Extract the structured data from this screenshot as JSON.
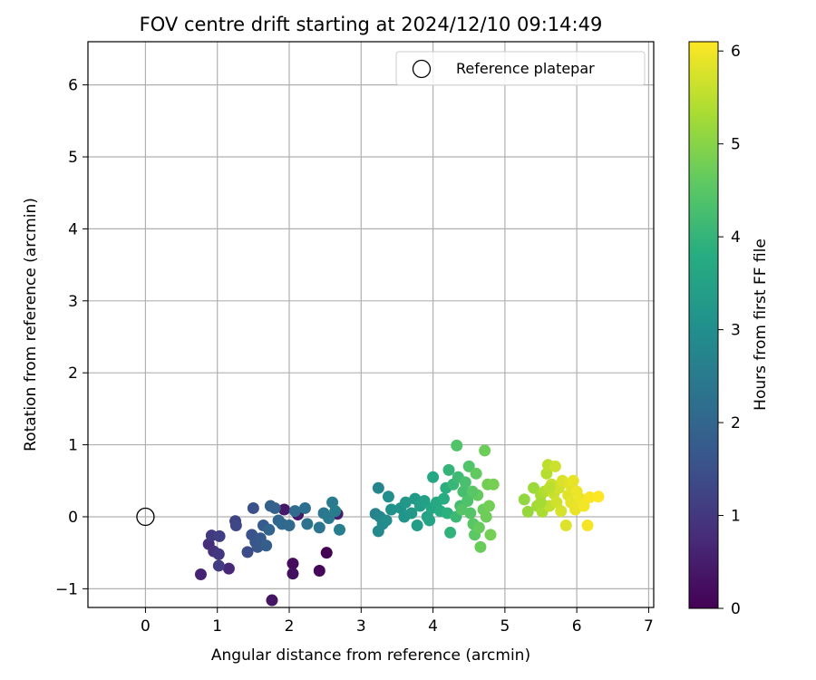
{
  "chart_data": {
    "type": "scatter",
    "title": "FOV centre drift starting at 2024/12/10 09:14:49",
    "xlabel": "Angular distance from reference (arcmin)",
    "ylabel": "Rotation from reference (arcmin)",
    "xlim": [
      -0.8,
      7.07
    ],
    "ylim": [
      -1.26,
      6.6
    ],
    "xticks": [
      0,
      1,
      2,
      3,
      4,
      5,
      6,
      7
    ],
    "xtick_labels": [
      "0",
      "1",
      "2",
      "3",
      "4",
      "5",
      "6",
      "7"
    ],
    "yticks": [
      -1,
      0,
      1,
      2,
      3,
      4,
      5,
      6
    ],
    "ytick_labels": [
      "−1",
      "0",
      "1",
      "2",
      "3",
      "4",
      "5",
      "6"
    ],
    "grid": true,
    "legend": {
      "position": "top-right",
      "entries": [
        {
          "label": "Reference platepar",
          "marker": "open-circle"
        }
      ]
    },
    "reference_point": {
      "x": 0,
      "y": 0
    },
    "colorbar": {
      "label": "Hours from first FF file",
      "colormap": "viridis",
      "range": [
        0,
        6.1
      ],
      "ticks": [
        0,
        1,
        2,
        3,
        4,
        5,
        6
      ],
      "tick_labels": [
        "0",
        "1",
        "2",
        "3",
        "4",
        "5",
        "6"
      ]
    },
    "series": [
      {
        "fields": [
          "x",
          "y",
          "hours"
        ],
        "points": [
          [
            2.52,
            -0.5,
            0.0
          ],
          [
            2.42,
            -0.75,
            0.1
          ],
          [
            2.05,
            -0.65,
            0.2
          ],
          [
            2.05,
            -0.79,
            0.25
          ],
          [
            1.76,
            -1.16,
            0.35
          ],
          [
            1.93,
            0.1,
            0.4
          ],
          [
            2.12,
            0.03,
            0.45
          ],
          [
            2.67,
            0.04,
            0.5
          ],
          [
            0.77,
            -0.8,
            0.6
          ],
          [
            1.16,
            -0.72,
            0.7
          ],
          [
            0.88,
            -0.38,
            0.8
          ],
          [
            0.95,
            -0.48,
            0.9
          ],
          [
            1.02,
            -0.52,
            1.0
          ],
          [
            0.92,
            -0.26,
            1.05
          ],
          [
            1.02,
            -0.68,
            1.1
          ],
          [
            1.03,
            -0.27,
            1.15
          ],
          [
            1.25,
            -0.06,
            1.25
          ],
          [
            1.26,
            -0.12,
            1.3
          ],
          [
            1.42,
            -0.49,
            1.4
          ],
          [
            1.5,
            0.12,
            1.5
          ],
          [
            1.48,
            -0.25,
            1.55
          ],
          [
            1.53,
            -0.35,
            1.6
          ],
          [
            1.56,
            -0.42,
            1.65
          ],
          [
            1.6,
            -0.3,
            1.7
          ],
          [
            1.64,
            -0.12,
            1.75
          ],
          [
            1.68,
            -0.4,
            1.8
          ],
          [
            1.74,
            0.15,
            1.85
          ],
          [
            1.8,
            0.12,
            1.9
          ],
          [
            1.72,
            -0.18,
            1.95
          ],
          [
            1.85,
            -0.05,
            2.0
          ],
          [
            1.9,
            -0.1,
            2.05
          ],
          [
            2.0,
            -0.12,
            2.1
          ],
          [
            2.08,
            0.08,
            2.15
          ],
          [
            2.22,
            0.12,
            2.2
          ],
          [
            2.25,
            -0.1,
            2.3
          ],
          [
            2.42,
            -0.15,
            2.35
          ],
          [
            2.48,
            0.05,
            2.4
          ],
          [
            2.55,
            -0.02,
            2.45
          ],
          [
            2.6,
            0.2,
            2.5
          ],
          [
            2.64,
            0.08,
            2.55
          ],
          [
            2.7,
            -0.18,
            2.6
          ],
          [
            3.2,
            0.04,
            2.7
          ],
          [
            3.24,
            0.4,
            2.75
          ],
          [
            3.26,
            0.0,
            2.8
          ],
          [
            3.24,
            -0.2,
            2.85
          ],
          [
            3.3,
            -0.1,
            2.9
          ],
          [
            3.35,
            -0.05,
            2.95
          ],
          [
            3.38,
            0.28,
            3.0
          ],
          [
            3.42,
            0.1,
            3.05
          ],
          [
            3.55,
            0.12,
            3.1
          ],
          [
            3.6,
            0.0,
            3.15
          ],
          [
            3.62,
            0.2,
            3.2
          ],
          [
            3.7,
            0.05,
            3.25
          ],
          [
            3.75,
            0.25,
            3.3
          ],
          [
            3.78,
            -0.12,
            3.35
          ],
          [
            3.82,
            0.15,
            3.4
          ],
          [
            3.88,
            0.22,
            3.45
          ],
          [
            3.92,
            0.0,
            3.5
          ],
          [
            3.95,
            -0.05,
            3.55
          ],
          [
            3.98,
            0.12,
            3.6
          ],
          [
            4.0,
            0.55,
            3.65
          ],
          [
            4.05,
            0.2,
            3.7
          ],
          [
            4.1,
            0.08,
            3.75
          ],
          [
            4.15,
            0.25,
            3.8
          ],
          [
            4.18,
            0.4,
            3.85
          ],
          [
            4.2,
            0.05,
            3.9
          ],
          [
            4.24,
            -0.22,
            3.95
          ],
          [
            4.22,
            0.65,
            4.0
          ],
          [
            4.28,
            0.45,
            4.05
          ],
          [
            4.32,
            0.0,
            4.1
          ],
          [
            4.35,
            0.55,
            4.15
          ],
          [
            4.38,
            0.15,
            4.2
          ],
          [
            4.42,
            0.35,
            4.25
          ],
          [
            4.45,
            0.48,
            4.3
          ],
          [
            4.48,
            0.22,
            4.35
          ],
          [
            4.5,
            0.7,
            4.4
          ],
          [
            4.52,
            0.05,
            4.45
          ],
          [
            4.56,
            -0.1,
            4.5
          ],
          [
            4.58,
            -0.25,
            4.55
          ],
          [
            4.6,
            0.6,
            4.6
          ],
          [
            4.62,
            0.3,
            4.62
          ],
          [
            4.64,
            -0.15,
            4.65
          ],
          [
            4.66,
            -0.42,
            4.68
          ],
          [
            4.7,
            0.1,
            4.7
          ],
          [
            4.72,
            0.92,
            4.72
          ],
          [
            4.74,
            0.0,
            4.74
          ],
          [
            4.76,
            0.45,
            4.76
          ],
          [
            4.78,
            0.15,
            4.78
          ],
          [
            4.8,
            -0.25,
            4.8
          ],
          [
            4.84,
            0.45,
            4.82
          ],
          [
            4.33,
            0.99,
            4.4
          ],
          [
            4.55,
            0.35,
            4.5
          ],
          [
            4.4,
            0.1,
            4.45
          ],
          [
            5.27,
            0.24,
            5.1
          ],
          [
            5.32,
            0.07,
            5.15
          ],
          [
            5.4,
            0.4,
            5.2
          ],
          [
            5.45,
            0.15,
            5.25
          ],
          [
            5.5,
            0.3,
            5.3
          ],
          [
            5.52,
            0.07,
            5.35
          ],
          [
            5.55,
            0.35,
            5.4
          ],
          [
            5.58,
            0.6,
            5.45
          ],
          [
            5.6,
            0.72,
            5.5
          ],
          [
            5.62,
            0.15,
            5.55
          ],
          [
            5.65,
            0.45,
            5.6
          ],
          [
            5.68,
            0.32,
            5.62
          ],
          [
            5.7,
            0.7,
            5.65
          ],
          [
            5.72,
            0.2,
            5.68
          ],
          [
            5.75,
            0.4,
            5.7
          ],
          [
            5.78,
            0.08,
            5.75
          ],
          [
            5.8,
            0.5,
            5.78
          ],
          [
            5.85,
            -0.12,
            5.8
          ],
          [
            5.88,
            0.3,
            5.82
          ],
          [
            5.9,
            0.45,
            5.85
          ],
          [
            5.92,
            0.2,
            5.88
          ],
          [
            5.95,
            0.5,
            5.9
          ],
          [
            5.98,
            0.1,
            5.92
          ],
          [
            6.0,
            0.35,
            5.95
          ],
          [
            6.05,
            0.25,
            5.97
          ],
          [
            6.1,
            0.15,
            6.0
          ],
          [
            6.15,
            -0.12,
            6.02
          ],
          [
            6.18,
            0.27,
            6.05
          ],
          [
            6.3,
            0.28,
            6.1
          ],
          [
            5.5,
            0.2,
            5.3
          ],
          [
            5.62,
            0.4,
            5.5
          ]
        ]
      }
    ]
  }
}
